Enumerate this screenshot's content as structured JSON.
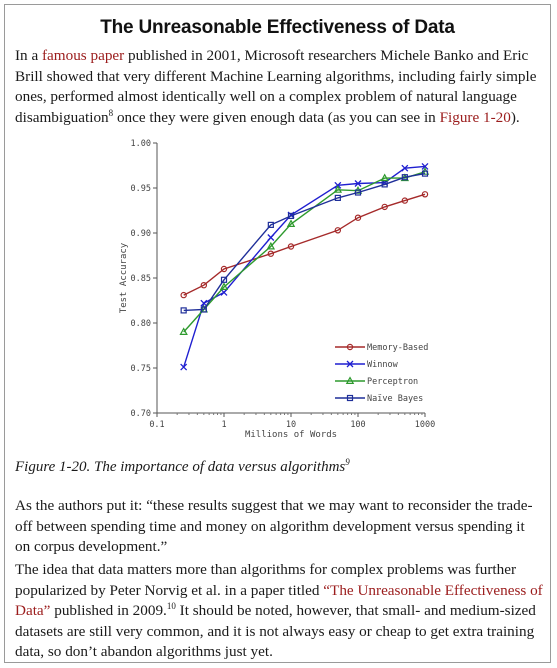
{
  "title": "The Unreasonable Effectiveness of Data",
  "intro": {
    "t1": "In a ",
    "link1": "famous paper",
    "t2": " published in 2001, Microsoft researchers Michele Banko and Eric Brill showed that very different Machine Learning algorithms, including fairly simple ones, performed almost identically well on a complex problem of natural language disambiguation",
    "sup1": "8",
    "t3": " once they were given enough data (as you can see in ",
    "link2": "Figure 1-20",
    "t4": ")."
  },
  "caption": {
    "text": "Figure 1-20. The importance of data versus algorithms",
    "sup": "9"
  },
  "quote": {
    "text": "As the authors put it: “these results suggest that we may want to reconsider the trade-off between spending time and money on algorithm development versus spending it on corpus development.”"
  },
  "closing": {
    "t1": "The idea that data matters more than algorithms for complex problems was further popularized by Peter Norvig et al. in a paper titled ",
    "link": "“The Unreasonable Effectiveness of Data”",
    "t2": " published in 2009.",
    "sup": "10",
    "t3": " It should be noted, however, that small- and medium-sized datasets are still very common, and it is not always easy or cheap to get extra training data, so don’t abandon algorithms just yet."
  },
  "colors": {
    "link": "#9b1c1c"
  },
  "chart_data": {
    "type": "line",
    "xlabel": "Millions of Words",
    "ylabel": "Test Accuracy",
    "xscale": "log",
    "xlim": [
      0.1,
      1000
    ],
    "ylim": [
      0.7,
      1.0
    ],
    "xticks": [
      0.1,
      1,
      10,
      100,
      1000
    ],
    "xtick_labels": [
      "0.1",
      "1",
      "10",
      "100",
      "1000"
    ],
    "yticks": [
      0.7,
      0.75,
      0.8,
      0.85,
      0.9,
      0.95,
      1.0
    ],
    "ytick_labels": [
      "0.70",
      "0.75",
      "0.80",
      "0.85",
      "0.90",
      "0.95",
      "1.00"
    ],
    "grid": false,
    "legend_position": "lower-right",
    "x": [
      0.25,
      0.5,
      1,
      5,
      10,
      50,
      100,
      250,
      500,
      1000
    ],
    "series": [
      {
        "name": "Memory-Based",
        "color": "#a52a2a",
        "marker": "circle",
        "values": [
          0.831,
          0.842,
          0.86,
          0.877,
          0.885,
          0.903,
          0.917,
          0.929,
          0.936,
          0.943
        ]
      },
      {
        "name": "Winnow",
        "color": "#1f1fd0",
        "marker": "x",
        "values": [
          0.751,
          0.822,
          0.834,
          0.895,
          0.92,
          0.953,
          0.955,
          0.956,
          0.972,
          0.974
        ]
      },
      {
        "name": "Perceptron",
        "color": "#2e9a2e",
        "marker": "triangle",
        "values": [
          0.79,
          0.815,
          0.84,
          0.885,
          0.91,
          0.948,
          0.947,
          0.961,
          0.961,
          0.968
        ]
      },
      {
        "name": "Naïve Bayes",
        "color": "#1f2f99",
        "marker": "square",
        "values": [
          0.814,
          0.815,
          0.848,
          0.909,
          0.919,
          0.939,
          0.945,
          0.954,
          0.962,
          0.966
        ]
      }
    ]
  }
}
